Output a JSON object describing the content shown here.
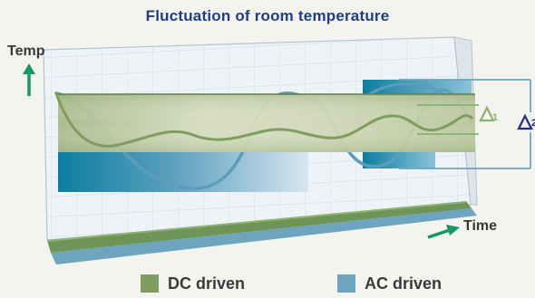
{
  "title": "Fluctuation of room temperature",
  "axes": {
    "y_label": "Temp",
    "x_label": "Time"
  },
  "legend": [
    {
      "label": "DC driven",
      "color": "#7f9d5e"
    },
    {
      "label": "AC driven",
      "color": "#6ea4bd"
    }
  ],
  "delta_labels": [
    "1",
    "2"
  ],
  "colors": {
    "title": "#1e3f86",
    "arrow": "#17966b",
    "grid": "#c9dcee",
    "dc_band": "#c5ceac",
    "dc_line": "#7f9d5e",
    "ac_band": "#157f9e",
    "ac_line": "#5e9cbb",
    "delta1": "#8eb36a",
    "delta2": "#1e2e8a"
  }
}
